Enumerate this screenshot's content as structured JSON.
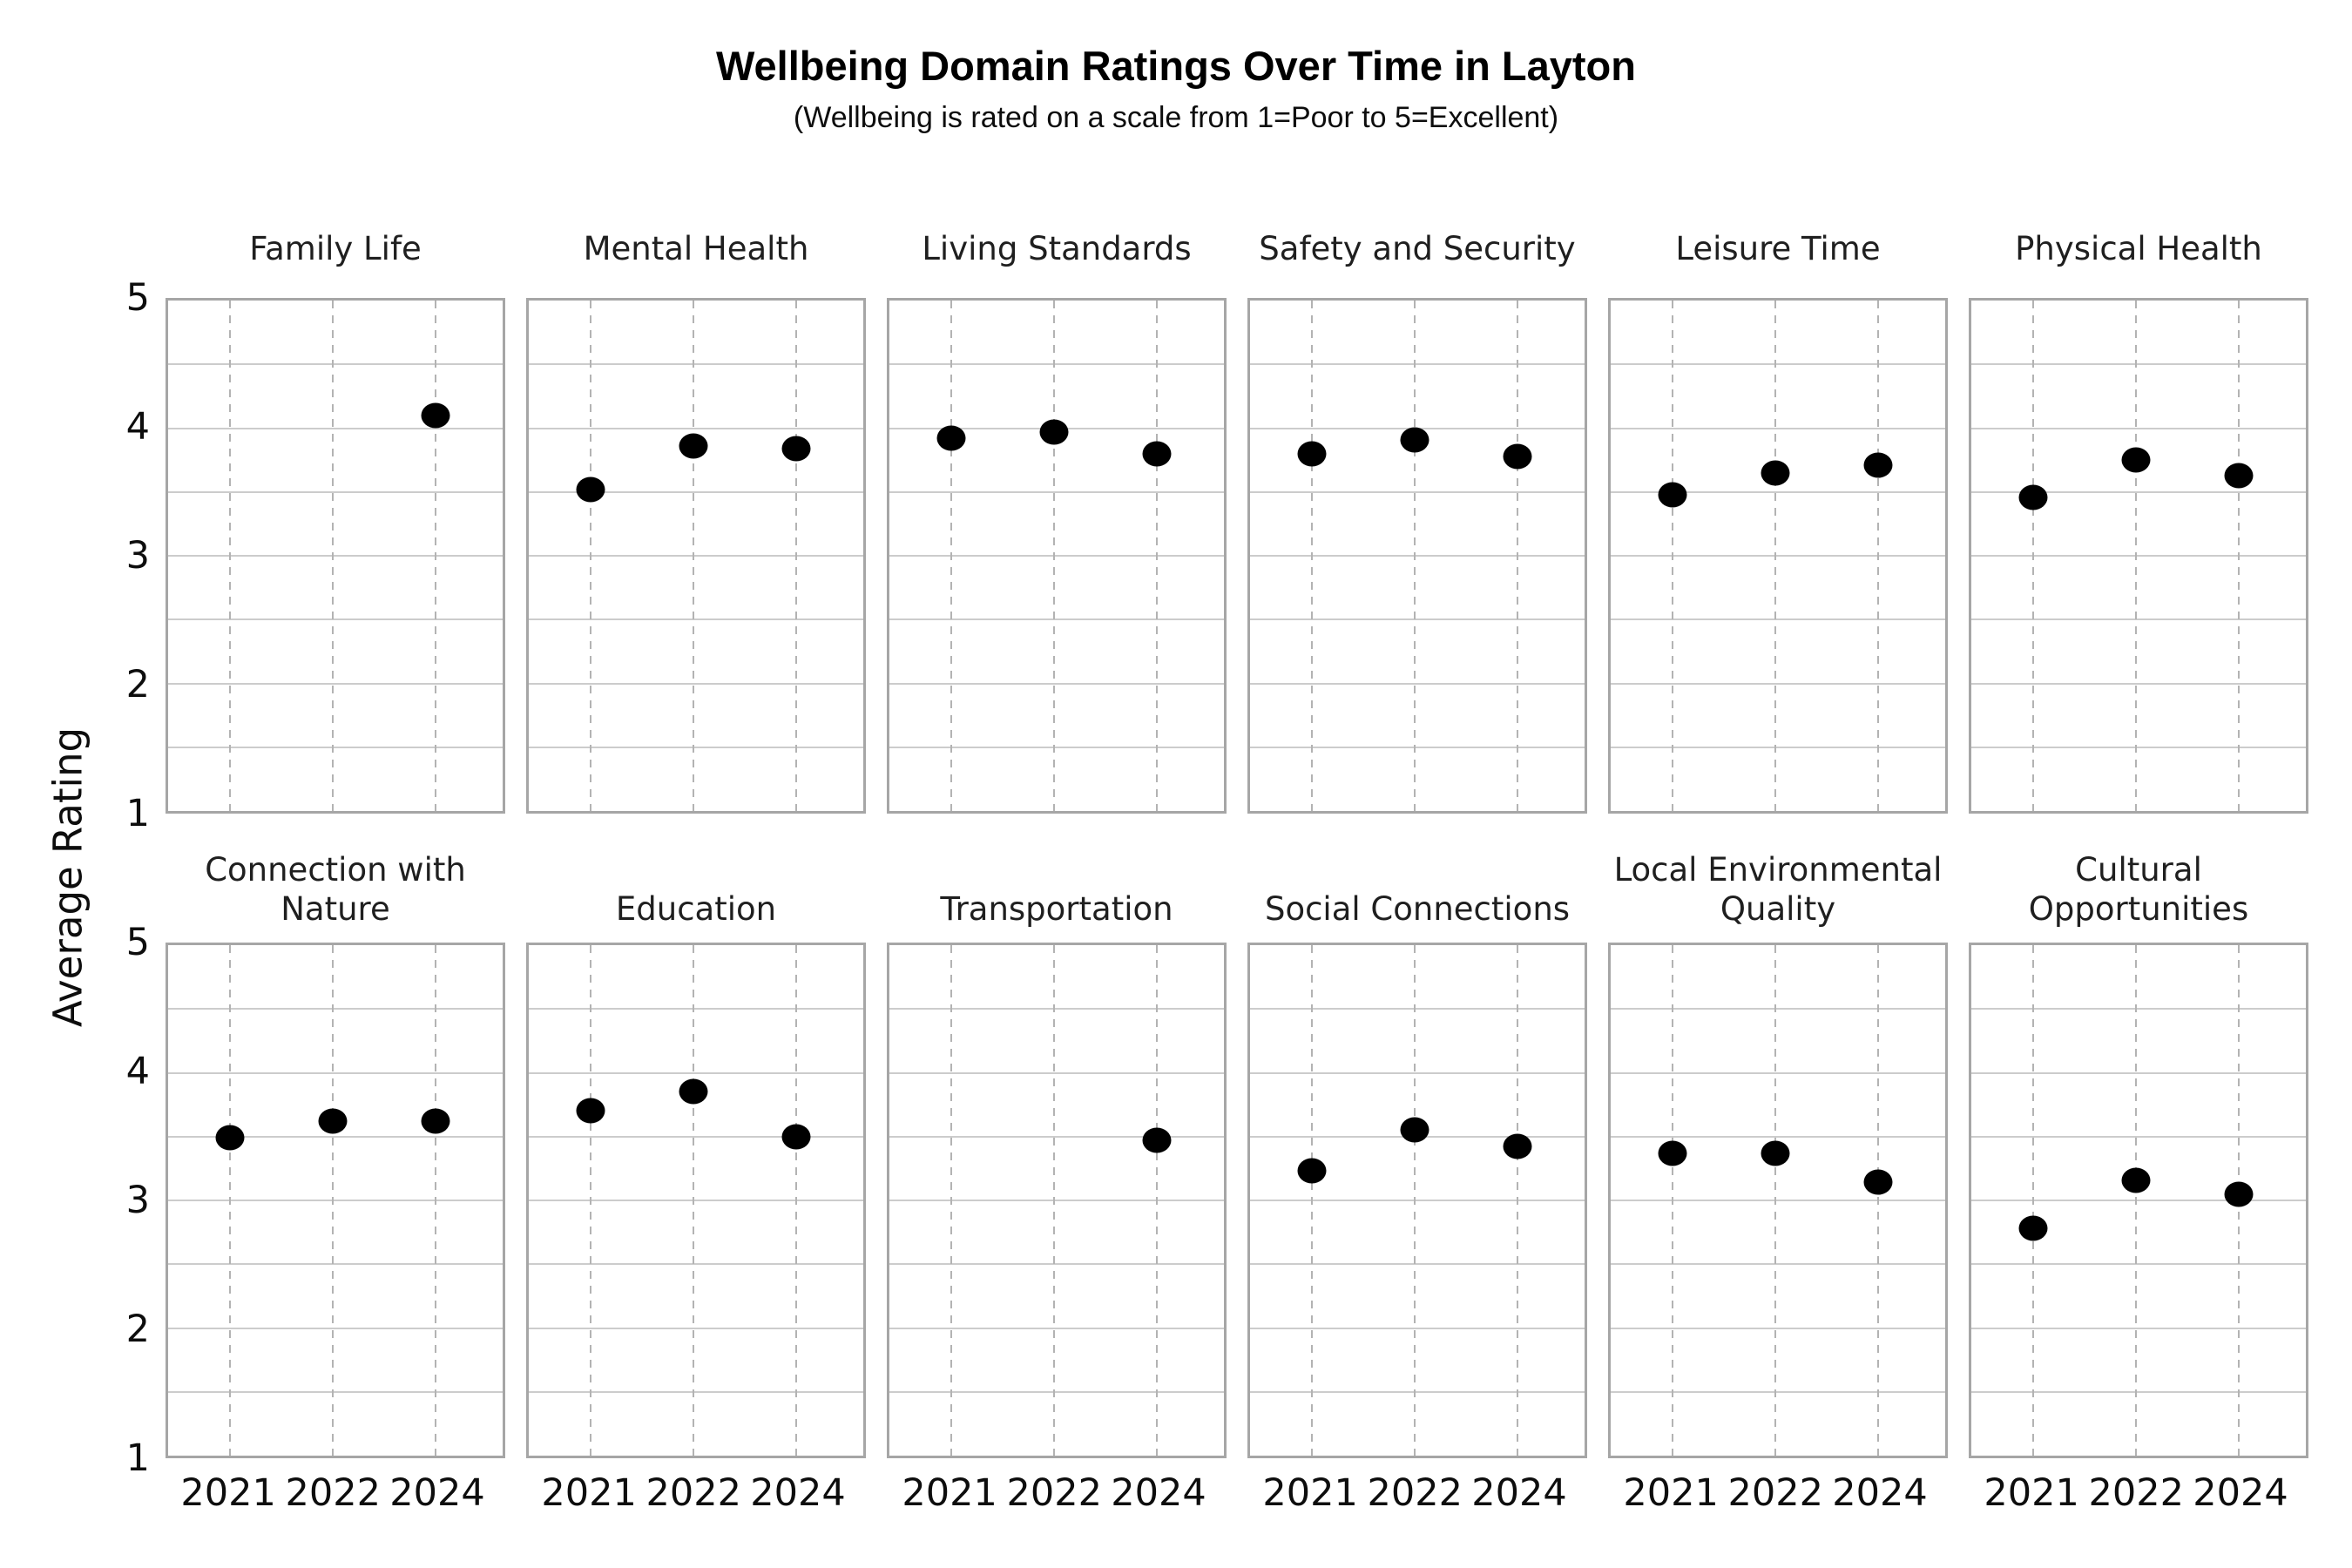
{
  "title": "Wellbeing Domain Ratings Over Time in Layton",
  "subtitle": "(Wellbeing is rated on a scale from 1=Poor to 5=Excellent)",
  "ylabel": "Average Rating",
  "chart_data": {
    "type": "scatter",
    "facet_grid": [
      2,
      6
    ],
    "x": [
      "2021",
      "2022",
      "2024"
    ],
    "xlabel": "",
    "ylabel": "Average Rating",
    "ylim": [
      1,
      5
    ],
    "yticks": [
      5,
      4,
      3,
      2,
      1
    ],
    "grid": "horizontal solid lines every 0.5; vertical dashed lines at each year; y tick labels on first column only; x tick labels on bottom row only",
    "legend": "none",
    "point_color": "#000000",
    "facets": [
      {
        "title": "Family Life",
        "values": [
          null,
          null,
          4.1
        ]
      },
      {
        "title": "Mental Health",
        "values": [
          3.52,
          3.86,
          3.84
        ]
      },
      {
        "title": "Living Standards",
        "values": [
          3.92,
          3.97,
          3.8
        ]
      },
      {
        "title": "Safety and Security",
        "values": [
          3.8,
          3.91,
          3.78
        ]
      },
      {
        "title": "Leisure Time",
        "values": [
          3.48,
          3.65,
          3.71
        ]
      },
      {
        "title": "Physical Health",
        "values": [
          3.46,
          3.75,
          3.63
        ]
      },
      {
        "title": "Connection with\nNature",
        "values": [
          3.49,
          3.62,
          3.62
        ]
      },
      {
        "title": "Education",
        "values": [
          3.7,
          3.85,
          3.5
        ]
      },
      {
        "title": "Transportation",
        "values": [
          null,
          null,
          3.47
        ]
      },
      {
        "title": "Social Connections",
        "values": [
          3.23,
          3.55,
          3.42
        ]
      },
      {
        "title": "Local Environmental\nQuality",
        "values": [
          3.37,
          3.37,
          3.14
        ]
      },
      {
        "title": "Cultural\nOpportunities",
        "values": [
          2.78,
          3.16,
          3.05
        ]
      }
    ]
  }
}
